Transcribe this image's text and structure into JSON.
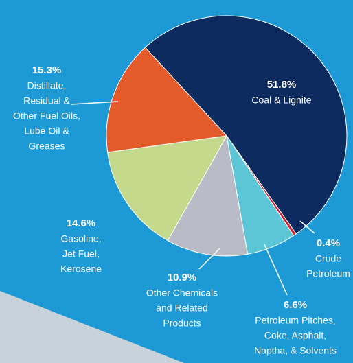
{
  "chart_data": {
    "type": "pie",
    "categories": [
      [
        "Coal & Lignite"
      ],
      [
        "Crude",
        "Petroleum"
      ],
      [
        "Petroleum Pitches,",
        "Coke, Asphalt,",
        "Naptha, & Solvents"
      ],
      [
        "Other Chemicals",
        "and Related",
        "Products"
      ],
      [
        "Gasoline,",
        "Jet Fuel,",
        "Kerosene"
      ],
      [
        "Distillate,",
        "Residual &",
        "Other Fuel Oils,",
        "Lube Oil &",
        "Greases"
      ]
    ],
    "values": [
      51.8,
      0.4,
      6.6,
      10.9,
      14.6,
      15.3
    ],
    "value_labels": [
      "51.8%",
      "0.4%",
      "6.6%",
      "10.9%",
      "14.6%",
      "15.3%"
    ],
    "colors": [
      "#0d2b5e",
      "#d3202f",
      "#5cc6d6",
      "#b9bcc6",
      "#c4d98b",
      "#e35a2b"
    ]
  }
}
